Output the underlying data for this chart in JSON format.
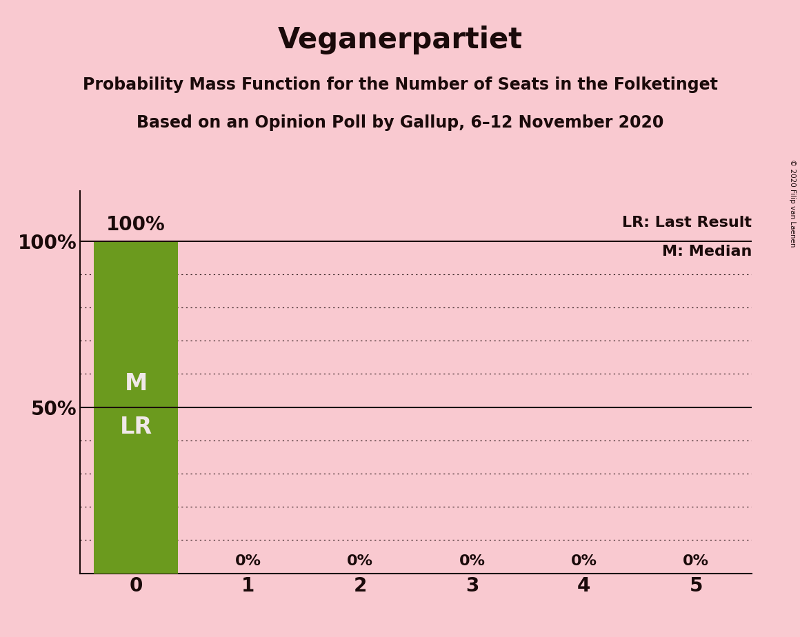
{
  "title": "Veganerpartiet",
  "subtitle1": "Probability Mass Function for the Number of Seats in the Folketinget",
  "subtitle2": "Based on an Opinion Poll by Gallup, 6–12 November 2020",
  "copyright": "© 2020 Filip van Laenen",
  "bar_values": [
    1.0,
    0.0,
    0.0,
    0.0,
    0.0,
    0.0
  ],
  "bar_labels": [
    "100%",
    "0%",
    "0%",
    "0%",
    "0%",
    "0%"
  ],
  "x_labels": [
    "0",
    "1",
    "2",
    "3",
    "4",
    "5"
  ],
  "bar_color": "#6b9a1e",
  "background_color": "#f9c9d0",
  "text_color": "#1a0a0a",
  "bar_label_color_inside": "#f0e8e8",
  "bar_annotation_M": "M",
  "bar_annotation_LR": "LR",
  "legend_lr": "LR: Last Result",
  "legend_m": "M: Median",
  "dotted_grid_values": [
    0.1,
    0.2,
    0.3,
    0.4,
    0.6,
    0.7,
    0.8,
    0.9
  ],
  "figsize": [
    11.6,
    9.24
  ],
  "dpi": 100
}
